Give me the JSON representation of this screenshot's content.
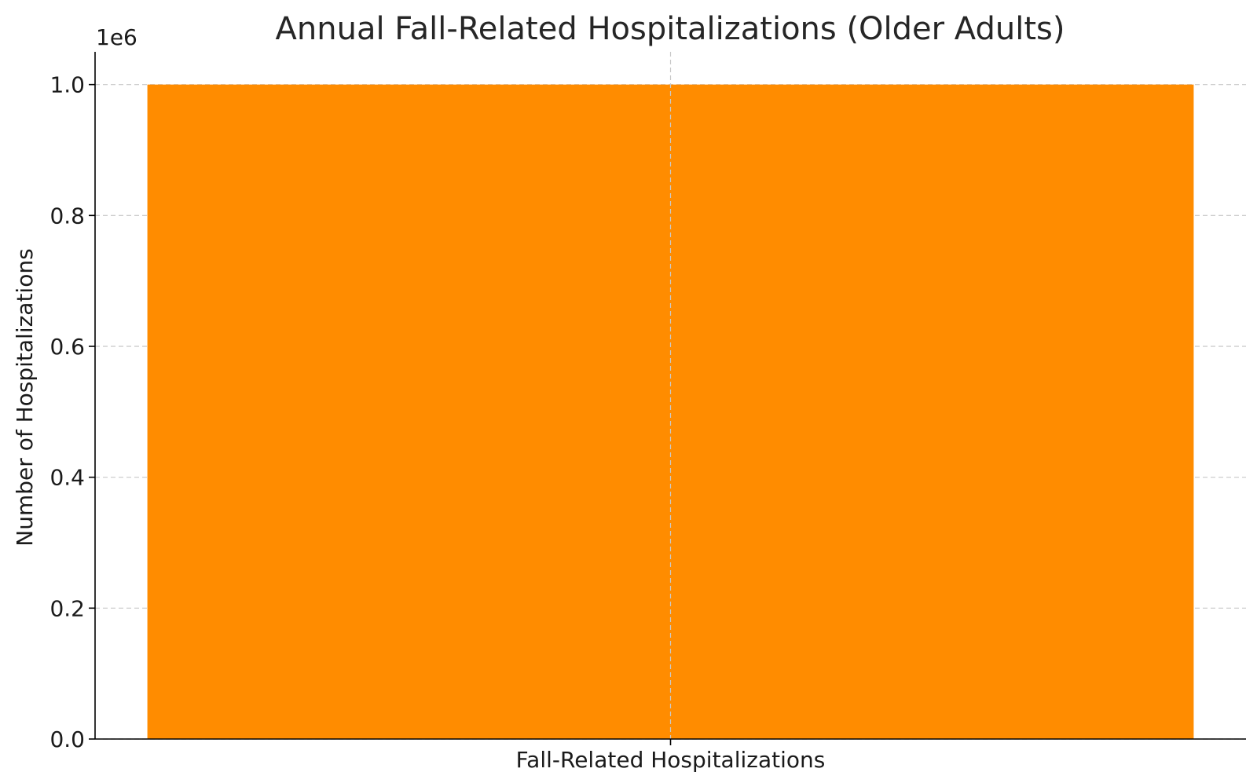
{
  "chart_data": {
    "type": "bar",
    "title": "Annual Fall-Related Hospitalizations (Older Adults)",
    "xlabel": "",
    "ylabel": "Number of Hospitalizations",
    "categories": [
      "Fall-Related Hospitalizations"
    ],
    "values": [
      1000000
    ],
    "ylim": [
      0,
      1050000
    ],
    "yticks": [
      0,
      200000,
      400000,
      600000,
      800000,
      1000000
    ],
    "ytick_labels": [
      "0.0",
      "0.2",
      "0.4",
      "0.6",
      "0.8",
      "1.0"
    ],
    "y_offset_label": "1e6",
    "grid": true,
    "bar_color": "#ff8c00",
    "grid_color": "#c8c8c8"
  }
}
